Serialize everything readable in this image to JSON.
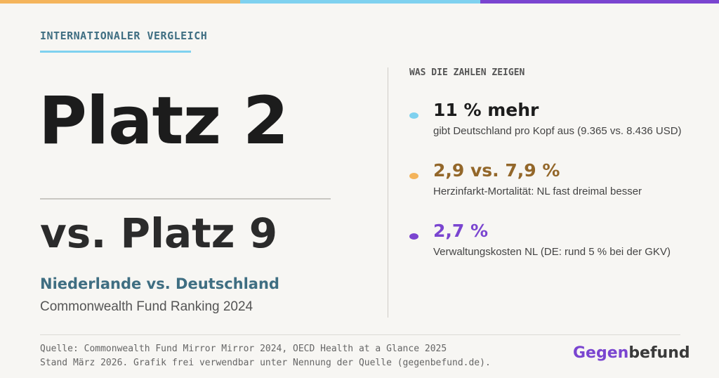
{
  "header": {
    "kicker": "INTERNATIONALER VERGLEICH"
  },
  "main": {
    "headline": "Platz 2",
    "comparison": "vs. Platz 9",
    "countries": "Niederlande vs. Deutschland",
    "source_ranking": "Commonwealth Fund Ranking 2024"
  },
  "facts": {
    "title": "WAS DIE ZAHLEN ZEIGEN",
    "items": [
      {
        "value": "11 % mehr",
        "text": "gibt Deutschland pro Kopf aus (9.365 vs. 8.436 USD)"
      },
      {
        "value": "2,9 vs. 7,9 %",
        "text": "Herzinfarkt-Mortalität: NL fast dreimal besser"
      },
      {
        "value": "2,7 %",
        "text": "Verwaltungskosten NL (DE: rund 5 % bei der GKV)"
      }
    ]
  },
  "footer": {
    "lines": [
      "Quelle: Commonwealth Fund Mirror Mirror 2024, OECD Health at a Glance 2025",
      "Stand März 2026. Grafik frei verwendbar unter Nennung der Quelle (gegenbefund.de)."
    ],
    "brand": {
      "part1": "Gegen",
      "part2": "befund"
    }
  }
}
